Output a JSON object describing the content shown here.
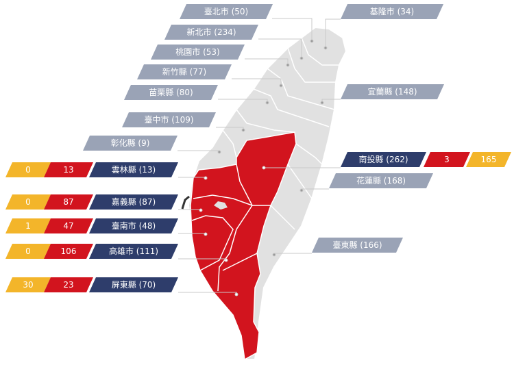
{
  "labels": [
    {
      "text": "臺北市 (50)"
    },
    {
      "text": "新北市 (234)"
    },
    {
      "text": "桃園市 (53)"
    },
    {
      "text": "新竹縣 (77)"
    },
    {
      "text": "苗栗縣 (80)"
    },
    {
      "text": "臺中市 (109)"
    },
    {
      "text": "彰化縣 (9)"
    },
    {
      "text": "基隆市 (34)"
    },
    {
      "text": "宜蘭縣 (148)"
    },
    {
      "text": "南投縣 (262)",
      "red": 3,
      "yellow": 165
    },
    {
      "text": "花蓮縣 (168)"
    },
    {
      "text": "臺東縣 (166)"
    },
    {
      "text": "雲林縣 (13)",
      "yellow": 0,
      "red": 13
    },
    {
      "text": "嘉義縣 (87)",
      "yellow": 0,
      "red": 87
    },
    {
      "text": "臺南市 (48)",
      "yellow": 1,
      "red": 47
    },
    {
      "text": "高雄市 (111)",
      "yellow": 0,
      "red": 106
    },
    {
      "text": "屏東縣 (70)",
      "yellow": 30,
      "red": 23
    }
  ]
}
